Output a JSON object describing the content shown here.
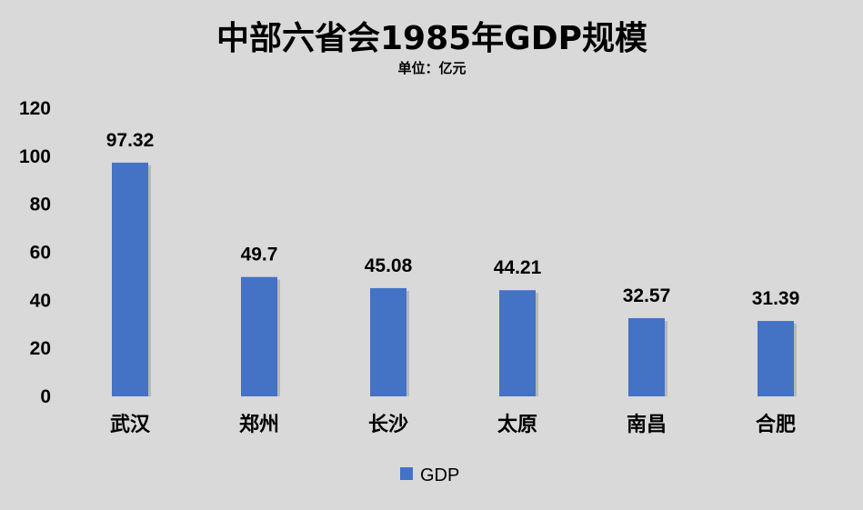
{
  "chart_data": {
    "type": "bar",
    "title": "中部六省会1985年GDP规模",
    "subtitle": "单位：亿元",
    "categories": [
      "武汉",
      "郑州",
      "长沙",
      "太原",
      "南昌",
      "合肥"
    ],
    "series": [
      {
        "name": "GDP",
        "values": [
          97.32,
          49.7,
          45.08,
          44.21,
          32.57,
          31.39
        ]
      }
    ],
    "data_labels": [
      "97.32",
      "49.7",
      "45.08",
      "44.21",
      "32.57",
      "31.39"
    ],
    "y_ticks": [
      "0",
      "20",
      "40",
      "60",
      "80",
      "100",
      "120"
    ],
    "ylim": [
      0,
      120
    ],
    "grid": false,
    "legend_position": "bottom",
    "colors": {
      "bar": "#4472c4",
      "background": "#d9d9d9"
    }
  }
}
